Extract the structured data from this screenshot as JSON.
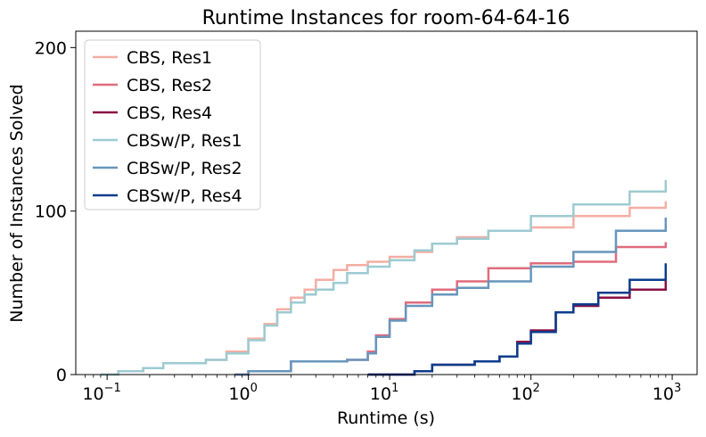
{
  "chart_data": {
    "type": "line",
    "title": "Runtime Instances for room-64-64-16",
    "xlabel": "Runtime (s)",
    "ylabel": "Number of Instances Solved",
    "xscale": "log",
    "xlim": [
      0.06,
      1500
    ],
    "ylim": [
      0,
      210
    ],
    "x_ticks": [
      {
        "value": 0.1,
        "base": "10",
        "exp": "−1"
      },
      {
        "value": 1,
        "base": "10",
        "exp": "0"
      },
      {
        "value": 10,
        "base": "10",
        "exp": "1"
      },
      {
        "value": 100,
        "base": "10",
        "exp": "2"
      },
      {
        "value": 1000,
        "base": "10",
        "exp": "3"
      }
    ],
    "y_ticks": [
      {
        "value": 0,
        "label": "0"
      },
      {
        "value": 100,
        "label": "100"
      },
      {
        "value": 200,
        "label": "200"
      }
    ],
    "grid": false,
    "legend_position": "top-left",
    "series": [
      {
        "name": "CBS, Res1",
        "color": "#f4aea3",
        "x": [
          0.09,
          0.12,
          0.18,
          0.25,
          0.5,
          0.7,
          1.0,
          1.3,
          1.6,
          2.0,
          2.5,
          3.0,
          4.0,
          5.0,
          7.0,
          10.0,
          15.0,
          20.0,
          30.0,
          50.0,
          100.0,
          200.0,
          500.0,
          900.0
        ],
        "y": [
          0,
          2,
          4,
          7,
          9,
          14,
          22,
          31,
          40,
          47,
          52,
          58,
          64,
          67,
          69,
          72,
          75,
          80,
          84,
          88,
          90,
          97,
          102,
          106
        ]
      },
      {
        "name": "CBS, Res2",
        "color": "#e06c7d",
        "x": [
          0.8,
          1.0,
          2.0,
          5.0,
          7.0,
          8.0,
          10.0,
          13.0,
          20.0,
          30.0,
          50.0,
          100.0,
          200.0,
          400.0,
          900.0
        ],
        "y": [
          0,
          2,
          8,
          9,
          14,
          24,
          34,
          44,
          52,
          57,
          65,
          68,
          69,
          78,
          81
        ]
      },
      {
        "name": "CBS, Res4",
        "color": "#8b1044",
        "x": [
          7.0,
          15.0,
          20.0,
          40.0,
          60.0,
          80.0,
          100.0,
          150.0,
          200.0,
          300.0,
          500.0,
          900.0
        ],
        "y": [
          0,
          2,
          6,
          8,
          11,
          20,
          27,
          38,
          42,
          47,
          52,
          59
        ]
      },
      {
        "name": "CBSw/P, Res1",
        "color": "#9ccbd1",
        "x": [
          0.09,
          0.12,
          0.18,
          0.25,
          0.5,
          0.7,
          1.0,
          1.3,
          1.6,
          2.0,
          2.5,
          3.0,
          4.0,
          5.0,
          7.0,
          10.0,
          15.0,
          20.0,
          30.0,
          50.0,
          100.0,
          200.0,
          500.0,
          900.0
        ],
        "y": [
          0,
          2,
          4,
          7,
          9,
          13,
          21,
          30,
          38,
          44,
          49,
          52,
          56,
          62,
          66,
          70,
          76,
          80,
          83,
          88,
          97,
          104,
          112,
          119
        ]
      },
      {
        "name": "CBSw/P, Res2",
        "color": "#6796bc",
        "x": [
          0.8,
          1.0,
          2.0,
          5.0,
          7.0,
          8.0,
          10.0,
          13.0,
          20.0,
          30.0,
          50.0,
          100.0,
          200.0,
          400.0,
          900.0
        ],
        "y": [
          0,
          2,
          8,
          9,
          13,
          23,
          33,
          42,
          49,
          53,
          57,
          66,
          75,
          88,
          96
        ]
      },
      {
        "name": "CBSw/P, Res4",
        "color": "#0b3c8c",
        "x": [
          7.0,
          15.0,
          20.0,
          40.0,
          60.0,
          80.0,
          100.0,
          150.0,
          200.0,
          300.0,
          500.0,
          900.0
        ],
        "y": [
          0,
          2,
          6,
          8,
          11,
          19,
          26,
          38,
          43,
          50,
          58,
          68
        ]
      }
    ]
  }
}
